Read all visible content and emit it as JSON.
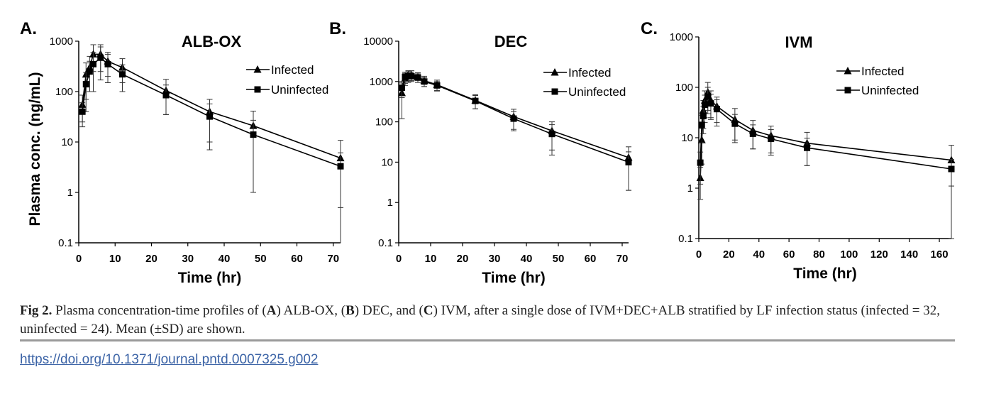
{
  "chart_data": [
    {
      "type": "line",
      "panel": "A.",
      "title": "ALB-OX",
      "xlabel": "Time (hr)",
      "ylabel": "Plasma conc. (ng/mL)",
      "yscale": "log",
      "ylim": [
        0.1,
        1000
      ],
      "yticks": [
        0.1,
        1,
        10,
        100,
        1000
      ],
      "ytick_labels": [
        "0.1",
        "1",
        "10",
        "100",
        "1000"
      ],
      "xlim": [
        0,
        72
      ],
      "xticks": [
        0,
        10,
        20,
        30,
        40,
        50,
        60,
        70
      ],
      "xtick_labels": [
        "0",
        "10",
        "20",
        "30",
        "40",
        "50",
        "60",
        "70"
      ],
      "legend": "top-right",
      "series": [
        {
          "name": "Infected",
          "marker": "triangle",
          "x": [
            1,
            2,
            3,
            4,
            6,
            8,
            12,
            24,
            36,
            48,
            72
          ],
          "y": [
            55,
            220,
            300,
            550,
            550,
            400,
            300,
            105,
            40,
            21,
            4.8
          ],
          "err": [
            30,
            150,
            200,
            300,
            300,
            200,
            150,
            70,
            30,
            20,
            6
          ]
        },
        {
          "name": "Uninfected",
          "marker": "square",
          "x": [
            1,
            2,
            3,
            4,
            6,
            8,
            12,
            24,
            36,
            48,
            72
          ],
          "y": [
            40,
            140,
            250,
            350,
            470,
            350,
            220,
            85,
            32,
            14,
            3.3
          ],
          "err": [
            20,
            100,
            150,
            250,
            300,
            200,
            120,
            50,
            25,
            13,
            2.8
          ]
        }
      ]
    },
    {
      "type": "line",
      "panel": "B.",
      "title": "DEC",
      "xlabel": "Time (hr)",
      "ylabel": "",
      "yscale": "log",
      "ylim": [
        0.1,
        10000
      ],
      "yticks": [
        0.1,
        1,
        10,
        100,
        1000,
        10000
      ],
      "ytick_labels": [
        "0.1",
        "1",
        "10",
        "100",
        "1000",
        "10000"
      ],
      "xlim": [
        0,
        72
      ],
      "xticks": [
        0,
        10,
        20,
        30,
        40,
        50,
        60,
        70
      ],
      "xtick_labels": [
        "0",
        "10",
        "20",
        "30",
        "40",
        "50",
        "60",
        "70"
      ],
      "legend": "top-right",
      "series": [
        {
          "name": "Infected",
          "marker": "triangle",
          "x": [
            1,
            2,
            3,
            4,
            6,
            8,
            12,
            24,
            36,
            48,
            72
          ],
          "y": [
            520,
            1200,
            1450,
            1450,
            1300,
            1050,
            830,
            340,
            135,
            60,
            13
          ],
          "err": [
            400,
            400,
            400,
            400,
            350,
            300,
            250,
            130,
            70,
            40,
            11
          ]
        },
        {
          "name": "Uninfected",
          "marker": "square",
          "x": [
            1,
            2,
            3,
            4,
            6,
            8,
            12,
            24,
            36,
            48,
            72
          ],
          "y": [
            700,
            1300,
            1350,
            1350,
            1250,
            1000,
            800,
            330,
            120,
            50,
            10
          ],
          "err": [
            300,
            400,
            400,
            350,
            300,
            250,
            200,
            120,
            60,
            35,
            8
          ]
        }
      ]
    },
    {
      "type": "line",
      "panel": "C.",
      "title": "IVM",
      "xlabel": "Time (hr)",
      "ylabel": "",
      "yscale": "log",
      "ylim": [
        0.1,
        1000
      ],
      "yticks": [
        0.1,
        1,
        10,
        100,
        1000
      ],
      "ytick_labels": [
        "0.1",
        "1",
        "10",
        "100",
        "1000"
      ],
      "xlim": [
        0,
        168
      ],
      "xticks": [
        0,
        20,
        40,
        60,
        80,
        100,
        120,
        140,
        160
      ],
      "xtick_labels": [
        "0",
        "20",
        "40",
        "60",
        "80",
        "100",
        "120",
        "140",
        "160"
      ],
      "legend": "top-right",
      "series": [
        {
          "name": "Infected",
          "marker": "triangle",
          "x": [
            1,
            2,
            3,
            4,
            6,
            8,
            12,
            24,
            36,
            48,
            72,
            168
          ],
          "y": [
            1.6,
            9,
            35,
            55,
            80,
            55,
            42,
            23,
            14,
            11,
            7.8,
            3.6
          ],
          "err": [
            1,
            6,
            20,
            30,
            45,
            30,
            22,
            15,
            8,
            6,
            5,
            3.5
          ]
        },
        {
          "name": "Uninfected",
          "marker": "square",
          "x": [
            1,
            2,
            3,
            4,
            6,
            8,
            12,
            24,
            36,
            48,
            72,
            168
          ],
          "y": [
            3.2,
            18,
            27,
            45,
            65,
            48,
            37,
            19,
            12,
            9.5,
            6.3,
            2.4
          ],
          "err": [
            2,
            10,
            15,
            25,
            35,
            25,
            20,
            10,
            6,
            5,
            3.5,
            1.3
          ]
        }
      ]
    }
  ],
  "caption": {
    "lead": "Fig 2.",
    "parts": [
      {
        "t": "  Plasma concentration-time profiles of (",
        "b": false
      },
      {
        "t": "A",
        "b": true
      },
      {
        "t": ") ALB-OX, (",
        "b": false
      },
      {
        "t": "B",
        "b": true
      },
      {
        "t": ") DEC, and (",
        "b": false
      },
      {
        "t": "C",
        "b": true
      },
      {
        "t": ") IVM, after a single dose of IVM+DEC+ALB stratified by LF infection status (infected = 32, uninfected = 24). Mean (±SD) are shown.",
        "b": false
      }
    ]
  },
  "doi": "https://doi.org/10.1371/journal.pntd.0007325.g002"
}
